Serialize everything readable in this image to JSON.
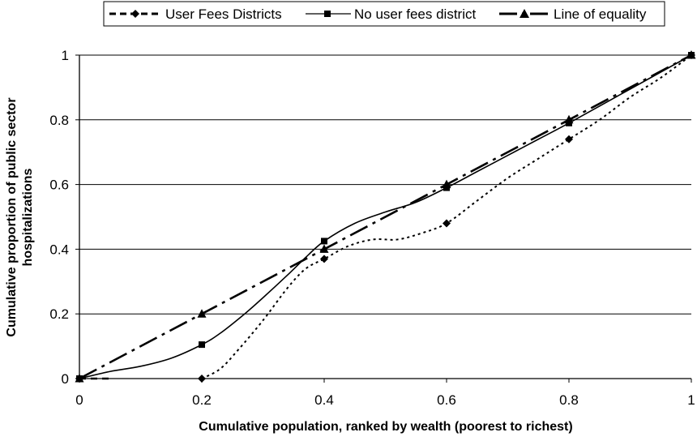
{
  "chart_data": {
    "type": "line",
    "title": "",
    "xlabel": "Cumulative population, ranked by wealth (poorest to richest)",
    "ylabel_lines": [
      "Cumulative proportion of public sector",
      "hospitalizations"
    ],
    "xlim": [
      0,
      1
    ],
    "ylim": [
      0,
      1
    ],
    "x_ticks": [
      0,
      0.2,
      0.4,
      0.6,
      0.8,
      1
    ],
    "y_ticks": [
      0,
      0.2,
      0.4,
      0.6,
      0.8,
      1
    ],
    "x_tick_labels": [
      "0",
      "0.2",
      "0.4",
      "0.6",
      "0.8",
      "1"
    ],
    "y_tick_labels": [
      "0",
      "0.2",
      "0.4",
      "0.6",
      "0.8",
      "1"
    ],
    "grid": "horizontal",
    "legend_position": "top-center",
    "series": [
      {
        "name": "User Fees Districts",
        "marker": "diamond",
        "style": "dotted",
        "color": "#000000",
        "points": [
          [
            0,
            0
          ],
          [
            0.2,
            0
          ],
          [
            0.4,
            0.37
          ],
          [
            0.6,
            0.48
          ],
          [
            0.8,
            0.74
          ],
          [
            1,
            1
          ]
        ],
        "curve": [
          [
            0.2,
            0
          ],
          [
            0.23,
            0.03
          ],
          [
            0.26,
            0.09
          ],
          [
            0.3,
            0.18
          ],
          [
            0.34,
            0.28
          ],
          [
            0.37,
            0.34
          ],
          [
            0.4,
            0.37
          ],
          [
            0.44,
            0.41
          ],
          [
            0.48,
            0.43
          ],
          [
            0.52,
            0.43
          ],
          [
            0.56,
            0.45
          ],
          [
            0.6,
            0.48
          ],
          [
            0.65,
            0.55
          ],
          [
            0.7,
            0.62
          ],
          [
            0.75,
            0.68
          ],
          [
            0.8,
            0.74
          ],
          [
            0.85,
            0.8
          ],
          [
            0.9,
            0.87
          ],
          [
            0.95,
            0.93
          ],
          [
            1,
            1
          ]
        ],
        "extra_segment": [
          [
            0,
            0
          ],
          [
            0.055,
            0
          ]
        ]
      },
      {
        "name": "No user fees district",
        "marker": "square",
        "style": "solid",
        "color": "#000000",
        "points": [
          [
            0,
            0
          ],
          [
            0.2,
            0.105
          ],
          [
            0.4,
            0.425
          ],
          [
            0.6,
            0.59
          ],
          [
            0.8,
            0.79
          ],
          [
            1,
            1
          ]
        ],
        "curve": [
          [
            0,
            0
          ],
          [
            0.05,
            0.022
          ],
          [
            0.1,
            0.038
          ],
          [
            0.15,
            0.063
          ],
          [
            0.2,
            0.105
          ],
          [
            0.23,
            0.14
          ],
          [
            0.27,
            0.2
          ],
          [
            0.3,
            0.25
          ],
          [
            0.34,
            0.32
          ],
          [
            0.37,
            0.375
          ],
          [
            0.4,
            0.425
          ],
          [
            0.45,
            0.48
          ],
          [
            0.5,
            0.515
          ],
          [
            0.55,
            0.545
          ],
          [
            0.6,
            0.59
          ],
          [
            0.65,
            0.64
          ],
          [
            0.7,
            0.69
          ],
          [
            0.75,
            0.74
          ],
          [
            0.8,
            0.79
          ],
          [
            0.9,
            0.895
          ],
          [
            1,
            1
          ]
        ]
      },
      {
        "name": "Line of equality",
        "marker": "triangle",
        "style": "dash-dot",
        "color": "#000000",
        "points": [
          [
            0,
            0
          ],
          [
            0.2,
            0.2
          ],
          [
            0.4,
            0.4
          ],
          [
            0.6,
            0.6
          ],
          [
            0.8,
            0.8
          ],
          [
            1,
            1
          ]
        ]
      }
    ]
  }
}
